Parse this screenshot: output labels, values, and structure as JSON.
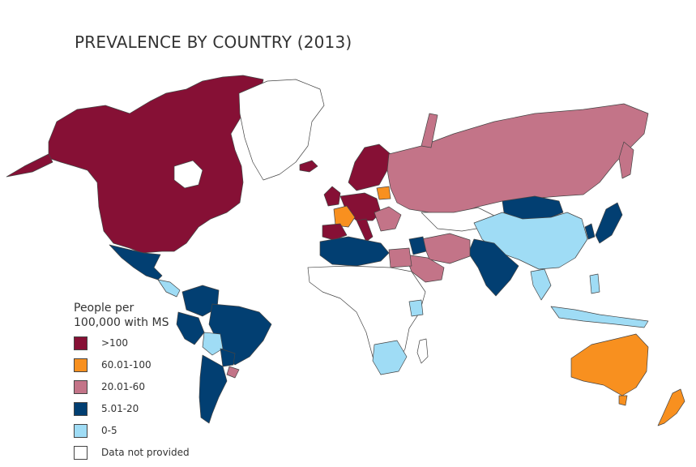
{
  "title": "PREVALENCE BY COUNTRY (2013)",
  "legend": {
    "title_line1": "People per",
    "title_line2": "100,000 with MS",
    "items": [
      {
        "label": ">100",
        "color": "#861035"
      },
      {
        "label": "60.01-100",
        "color": "#f8901f"
      },
      {
        "label": "20.01-60",
        "color": "#c37488"
      },
      {
        "label": "5.01-20",
        "color": "#023f72"
      },
      {
        "label": "0-5",
        "color": "#9fdcf5"
      },
      {
        "label": "Data not provided",
        "color": "#ffffff"
      }
    ]
  },
  "colors": {
    "gt100": "#861035",
    "r60_100": "#f8901f",
    "r20_60": "#c37488",
    "r5_20": "#023f72",
    "r0_5": "#9fdcf5",
    "no_data": "#ffffff",
    "border": "#444444"
  }
}
